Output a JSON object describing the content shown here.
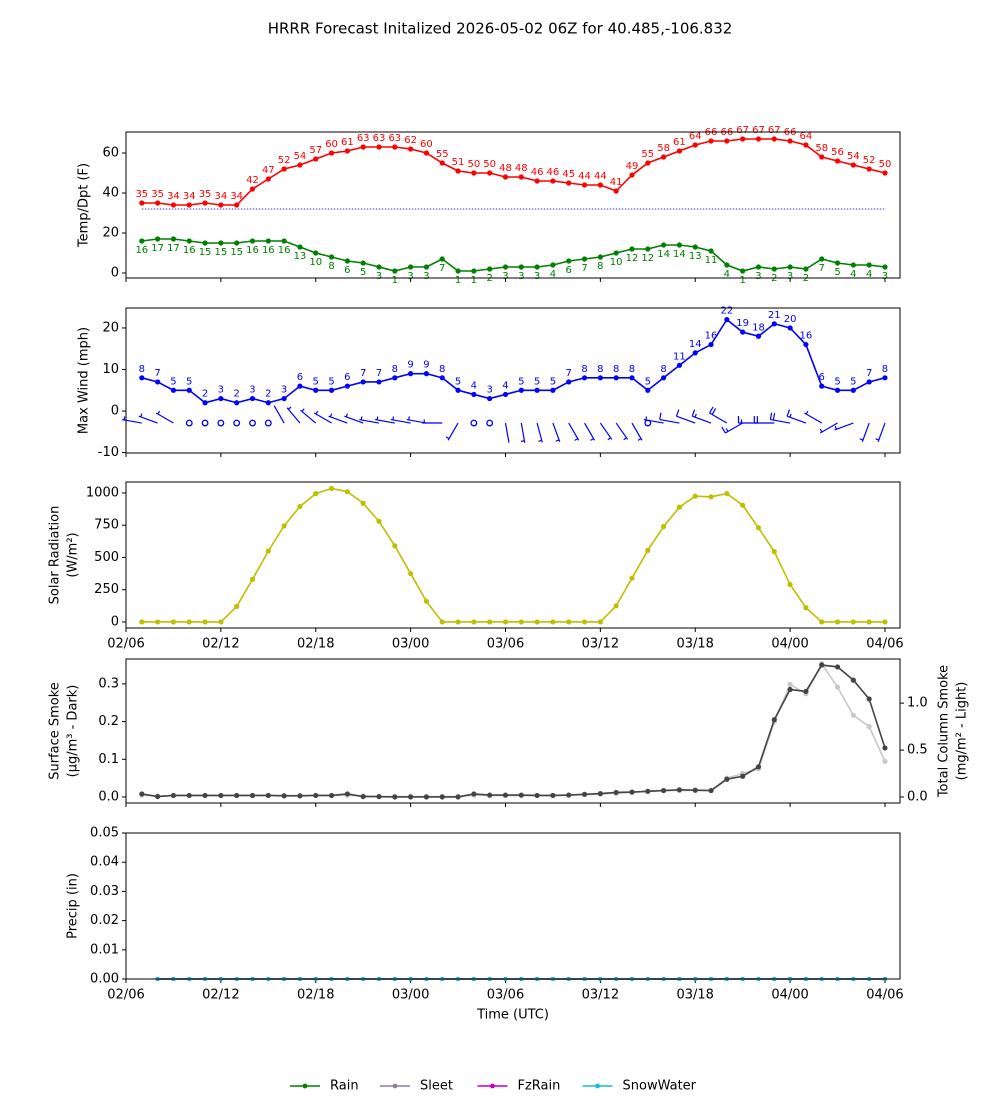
{
  "title": "HRRR Forecast Initalized 2026-05-02 06Z for 40.485,-106.832",
  "time_axis": {
    "xlim": [
      0,
      48.95
    ],
    "xticks": [
      {
        "value": 0,
        "label": "02/06"
      },
      {
        "value": 6,
        "label": "02/12"
      },
      {
        "value": 12,
        "label": "02/18"
      },
      {
        "value": 18,
        "label": "03/00"
      },
      {
        "value": 24,
        "label": "03/06"
      },
      {
        "value": 30,
        "label": "03/12"
      },
      {
        "value": 36,
        "label": "03/18"
      },
      {
        "value": 42,
        "label": "04/00"
      },
      {
        "value": 48,
        "label": "04/06"
      }
    ]
  },
  "chart_data": [
    {
      "type": "line",
      "ylabel": [
        "Temp/Dpt (F)"
      ],
      "ylim": [
        -2.5,
        70.5
      ],
      "yticks": [
        0,
        20,
        40,
        60
      ],
      "xtick_labels": false,
      "hline": {
        "value": 32,
        "color": "#00008b"
      },
      "x": [
        1,
        2,
        3,
        4,
        5,
        6,
        7,
        8,
        9,
        10,
        11,
        12,
        13,
        14,
        15,
        16,
        17,
        18,
        19,
        20,
        21,
        22,
        23,
        24,
        25,
        26,
        27,
        28,
        29,
        30,
        31,
        32,
        33,
        34,
        35,
        36,
        37,
        38,
        39,
        40,
        41,
        42,
        43,
        44,
        45,
        46,
        47,
        48
      ],
      "series": [
        {
          "name": "Temp",
          "color": "#ff0000",
          "labels": "above",
          "values": [
            35,
            35,
            34,
            34,
            35,
            34,
            34,
            42,
            47,
            52,
            54,
            57,
            60,
            61,
            63,
            63,
            63,
            62,
            60,
            55,
            51,
            50,
            50,
            48,
            48,
            46,
            46,
            45,
            44,
            44,
            41,
            49,
            55,
            58,
            61,
            64,
            66,
            66,
            67,
            67,
            67,
            66,
            64,
            58,
            56,
            54,
            52,
            50
          ]
        },
        {
          "name": "Dpt",
          "color": "#008000",
          "labels": "below",
          "values": [
            16,
            17,
            17,
            16,
            15,
            15,
            15,
            16,
            16,
            16,
            13,
            10,
            8,
            6,
            5,
            3,
            1,
            3,
            3,
            7,
            1,
            1,
            2,
            3,
            3,
            3,
            4,
            6,
            7,
            8,
            10,
            12,
            12,
            14,
            14,
            13,
            11,
            4,
            1,
            3,
            2,
            3,
            2,
            7,
            5,
            4,
            4,
            3
          ]
        }
      ]
    },
    {
      "type": "line",
      "ylabel": [
        "Max Wind (mph)"
      ],
      "ylim": [
        -10.1,
        24.8
      ],
      "yticks": [
        -10,
        0,
        10,
        20
      ],
      "xtick_labels": false,
      "x": [
        1,
        2,
        3,
        4,
        5,
        6,
        7,
        8,
        9,
        10,
        11,
        12,
        13,
        14,
        15,
        16,
        17,
        18,
        19,
        20,
        21,
        22,
        23,
        24,
        25,
        26,
        27,
        28,
        29,
        30,
        31,
        32,
        33,
        34,
        35,
        36,
        37,
        38,
        39,
        40,
        41,
        42,
        43,
        44,
        45,
        46,
        47,
        48
      ],
      "series": [
        {
          "name": "Wind",
          "color": "#0000ff",
          "labels": "above",
          "values": [
            8,
            7,
            5,
            5,
            2,
            3,
            2,
            3,
            2,
            3,
            6,
            5,
            5,
            6,
            7,
            7,
            8,
            9,
            9,
            8,
            5,
            4,
            3,
            4,
            5,
            5,
            5,
            7,
            8,
            8,
            8,
            8,
            5,
            8,
            11,
            14,
            16,
            22,
            19,
            18,
            21,
            20,
            16,
            6,
            5,
            5,
            7,
            8
          ]
        }
      ],
      "wind_direction": [
        280,
        290,
        300,
        null,
        null,
        null,
        null,
        null,
        null,
        330,
        320,
        310,
        300,
        290,
        290,
        280,
        280,
        280,
        280,
        270,
        210,
        null,
        null,
        170,
        170,
        165,
        160,
        150,
        150,
        145,
        145,
        150,
        null,
        280,
        280,
        290,
        290,
        300,
        240,
        270,
        270,
        280,
        290,
        300,
        240,
        250,
        200,
        200
      ]
    },
    {
      "type": "line",
      "ylabel": [
        "Solar Radiation",
        "(W/m²)"
      ],
      "ylim": [
        -47,
        1085
      ],
      "yticks": [
        0,
        250,
        500,
        750,
        1000
      ],
      "xtick_labels": true,
      "x": [
        1,
        2,
        3,
        4,
        5,
        6,
        7,
        8,
        9,
        10,
        11,
        12,
        13,
        14,
        15,
        16,
        17,
        18,
        19,
        20,
        21,
        22,
        23,
        24,
        25,
        26,
        27,
        28,
        29,
        30,
        31,
        32,
        33,
        34,
        35,
        36,
        37,
        38,
        39,
        40,
        41,
        42,
        43,
        44,
        45,
        46,
        47,
        48
      ],
      "series": [
        {
          "name": "Solar",
          "color": "#bfbf00",
          "values": [
            0,
            0,
            0,
            0,
            0,
            0,
            120,
            330,
            550,
            745,
            895,
            995,
            1035,
            1010,
            920,
            780,
            590,
            375,
            160,
            0,
            0,
            0,
            0,
            0,
            0,
            0,
            0,
            0,
            0,
            0,
            125,
            340,
            555,
            740,
            890,
            975,
            970,
            995,
            905,
            730,
            545,
            290,
            110,
            0,
            0,
            0,
            0,
            0
          ]
        }
      ]
    },
    {
      "type": "line",
      "ylabel": [
        "Surface Smoke",
        "(μg/m³ - Dark)"
      ],
      "y2label": [
        "Total Column Smoke",
        "(mg/m² - Light)"
      ],
      "ylim": [
        -0.016,
        0.366
      ],
      "yticks": [
        {
          "value": 0,
          "label": "0.0"
        },
        0.1,
        0.2,
        0.3
      ],
      "y2lim": [
        -0.064,
        1.47
      ],
      "y2ticks": [
        {
          "value": 0,
          "label": "0.0"
        },
        0.5,
        {
          "value": 1,
          "label": "1.0"
        }
      ],
      "xtick_labels": false,
      "x": [
        1,
        2,
        3,
        4,
        5,
        6,
        7,
        8,
        9,
        10,
        11,
        12,
        13,
        14,
        15,
        16,
        17,
        18,
        19,
        20,
        21,
        22,
        23,
        24,
        25,
        26,
        27,
        28,
        29,
        30,
        31,
        32,
        33,
        34,
        35,
        36,
        37,
        38,
        39,
        40,
        41,
        42,
        43,
        44,
        45,
        46,
        47,
        48
      ],
      "series": [
        {
          "name": "Column",
          "color": "#c8c8c8",
          "axis": "y2",
          "values": [
            0.02,
            0.01,
            0.015,
            0.015,
            0.015,
            0.015,
            0.015,
            0.015,
            0.015,
            0.015,
            0.015,
            0.015,
            0.015,
            0.02,
            0.01,
            0.005,
            0.005,
            0.005,
            0.005,
            0.005,
            0.005,
            0.02,
            0.015,
            0.015,
            0.015,
            0.015,
            0.015,
            0.02,
            0.025,
            0.03,
            0.04,
            0.05,
            0.06,
            0.07,
            0.07,
            0.07,
            0.07,
            0.2,
            0.25,
            0.3,
            0.8,
            1.2,
            1.1,
            1.42,
            1.17,
            0.87,
            0.75,
            0.38
          ]
        },
        {
          "name": "Surface",
          "color": "#444444",
          "values": [
            0.008,
            0.001,
            0.004,
            0.004,
            0.004,
            0.004,
            0.004,
            0.004,
            0.004,
            0.003,
            0.003,
            0.004,
            0.004,
            0.008,
            0.001,
            0.001,
            0.0,
            0.0,
            0.0,
            0.0,
            0.0,
            0.008,
            0.005,
            0.005,
            0.005,
            0.004,
            0.004,
            0.005,
            0.007,
            0.009,
            0.012,
            0.013,
            0.015,
            0.017,
            0.019,
            0.018,
            0.017,
            0.047,
            0.055,
            0.08,
            0.205,
            0.285,
            0.28,
            0.35,
            0.345,
            0.31,
            0.26,
            0.13
          ]
        }
      ]
    },
    {
      "type": "line",
      "ylabel": [
        "Precip (in)"
      ],
      "xlabel": "Time (UTC)",
      "legend": "bottom",
      "ylim": [
        0,
        0.05
      ],
      "yticks": [
        {
          "value": 0,
          "label": "0.00"
        },
        {
          "value": 0.01,
          "label": "0.01"
        },
        {
          "value": 0.02,
          "label": "0.02"
        },
        {
          "value": 0.03,
          "label": "0.03"
        },
        {
          "value": 0.04,
          "label": "0.04"
        },
        {
          "value": 0.05,
          "label": "0.05"
        }
      ],
      "xtick_labels": true,
      "x": [
        2,
        3,
        4,
        5,
        6,
        7,
        8,
        9,
        10,
        11,
        12,
        13,
        14,
        15,
        16,
        17,
        18,
        19,
        20,
        21,
        22,
        23,
        24,
        25,
        26,
        27,
        28,
        29,
        30,
        31,
        32,
        33,
        34,
        35,
        36,
        37,
        38,
        39,
        40,
        41,
        42,
        43,
        44,
        45,
        46,
        47,
        48
      ],
      "series": [
        {
          "name": "Rain",
          "color": "#008000",
          "values": [
            0,
            0,
            0,
            0,
            0,
            0,
            0,
            0,
            0,
            0,
            0,
            0,
            0,
            0,
            0,
            0,
            0,
            0,
            0,
            0,
            0,
            0,
            0,
            0,
            0,
            0,
            0,
            0,
            0,
            0,
            0,
            0,
            0,
            0,
            0,
            0,
            0,
            0,
            0,
            0,
            0,
            0,
            0,
            0,
            0,
            0,
            0
          ]
        },
        {
          "name": "Sleet",
          "color": "#8c7fa3",
          "values": [
            0,
            0,
            0,
            0,
            0,
            0,
            0,
            0,
            0,
            0,
            0,
            0,
            0,
            0,
            0,
            0,
            0,
            0,
            0,
            0,
            0,
            0,
            0,
            0,
            0,
            0,
            0,
            0,
            0,
            0,
            0,
            0,
            0,
            0,
            0,
            0,
            0,
            0,
            0,
            0,
            0,
            0,
            0,
            0,
            0,
            0,
            0
          ]
        },
        {
          "name": "FzRain",
          "color": "#c000c0",
          "values": [
            0,
            0,
            0,
            0,
            0,
            0,
            0,
            0,
            0,
            0,
            0,
            0,
            0,
            0,
            0,
            0,
            0,
            0,
            0,
            0,
            0,
            0,
            0,
            0,
            0,
            0,
            0,
            0,
            0,
            0,
            0,
            0,
            0,
            0,
            0,
            0,
            0,
            0,
            0,
            0,
            0,
            0,
            0,
            0,
            0,
            0,
            0
          ]
        },
        {
          "name": "SnowWater",
          "color": "#17becf",
          "values": [
            0,
            0,
            0,
            0,
            0,
            0,
            0,
            0,
            0,
            0,
            0,
            0,
            0,
            0,
            0,
            0,
            0,
            0,
            0,
            0,
            0,
            0,
            0,
            0,
            0,
            0,
            0,
            0,
            0,
            0,
            0,
            0,
            0,
            0,
            0,
            0,
            0,
            0,
            0,
            0,
            0,
            0,
            0,
            0,
            0,
            0,
            0
          ]
        }
      ]
    }
  ]
}
